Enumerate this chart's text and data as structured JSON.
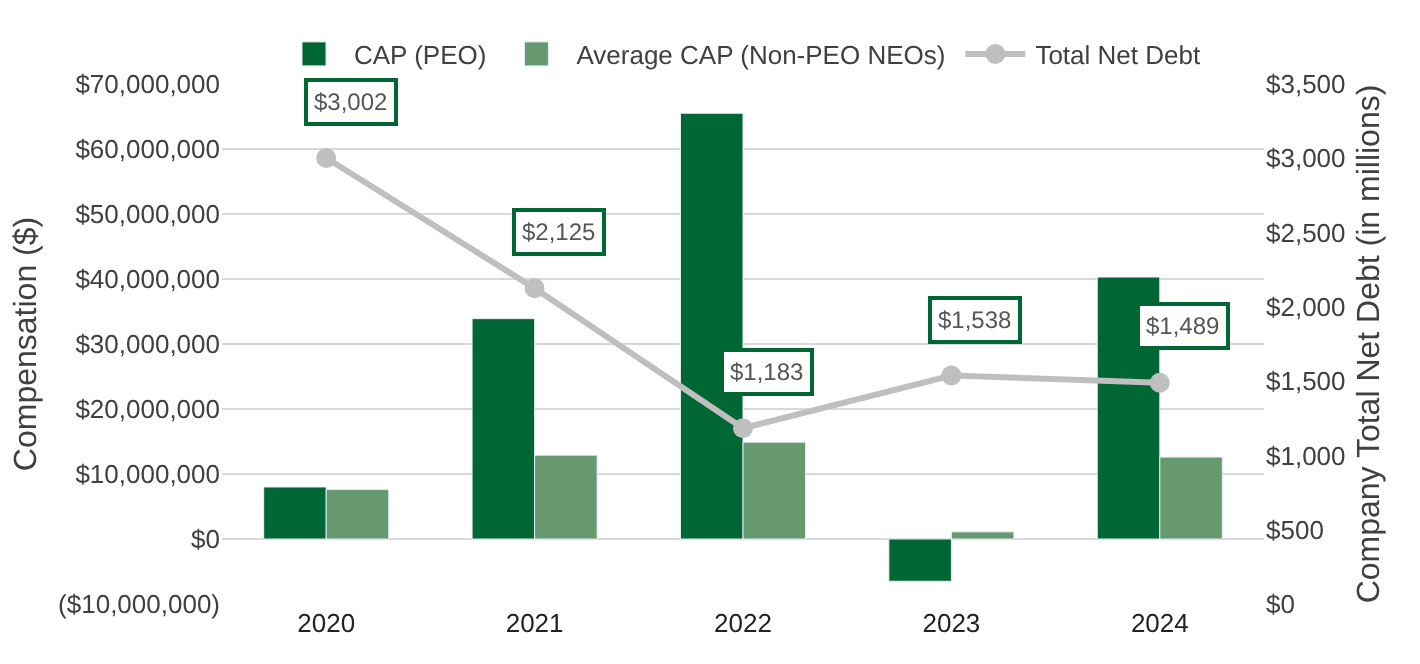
{
  "chart_data": {
    "type": "bar",
    "categories": [
      "2020",
      "2021",
      "2022",
      "2023",
      "2024"
    ],
    "ylabel": "Compensation ($)",
    "y2label": "Company Total Net Debt (in millions)",
    "series": [
      {
        "name": "CAP (PEO)",
        "color": "#006633",
        "values": [
          8000000,
          33900000,
          65500000,
          -6500000,
          40300000
        ]
      },
      {
        "name": "Average CAP (Non-PEO NEOs)",
        "color": "#669970",
        "values": [
          7600000,
          12900000,
          14900000,
          1100000,
          12600000
        ]
      },
      {
        "name": "Total Net Debt",
        "type": "line",
        "axis": "y2",
        "color": "#bfbfbf",
        "marker": "circle",
        "values": [
          3002,
          2125,
          1183,
          1538,
          1489
        ],
        "value_labels": [
          "$3,002",
          "$2,125",
          "$1,183",
          "$1,538",
          "$1,489"
        ]
      }
    ],
    "ylim": [
      -10000000,
      70000000
    ],
    "yticks": [
      {
        "value": -10000000,
        "label": "($10,000,000)"
      },
      {
        "value": 0,
        "label": "$0"
      },
      {
        "value": 10000000,
        "label": "$10,000,000"
      },
      {
        "value": 20000000,
        "label": "$20,000,000"
      },
      {
        "value": 30000000,
        "label": "$30,000,000"
      },
      {
        "value": 40000000,
        "label": "$40,000,000"
      },
      {
        "value": 50000000,
        "label": "$50,000,000"
      },
      {
        "value": 60000000,
        "label": "$60,000,000"
      },
      {
        "value": 70000000,
        "label": "$70,000,000"
      }
    ],
    "y2lim": [
      0,
      3500
    ],
    "y2ticks": [
      {
        "value": 0,
        "label": "$0"
      },
      {
        "value": 500,
        "label": "$500"
      },
      {
        "value": 1000,
        "label": "$1,000"
      },
      {
        "value": 1500,
        "label": "$1,500"
      },
      {
        "value": 2000,
        "label": "$2,000"
      },
      {
        "value": 2500,
        "label": "$2,500"
      },
      {
        "value": 3000,
        "label": "$3,000"
      },
      {
        "value": 3500,
        "label": "$3,500"
      }
    ],
    "grid": "y",
    "legend": "top"
  }
}
